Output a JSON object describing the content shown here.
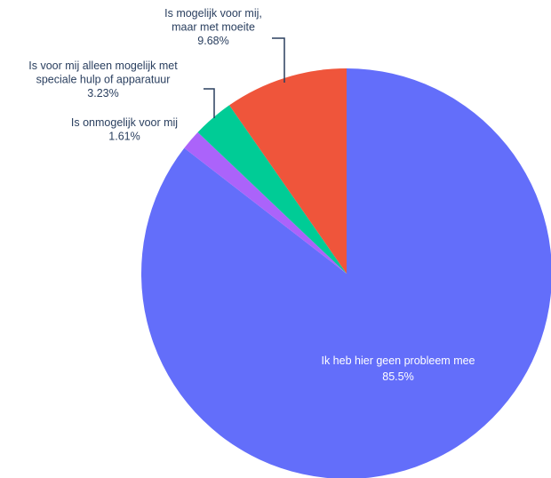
{
  "chart_data": {
    "type": "pie",
    "direction": "clockwise",
    "start": "top",
    "slices": [
      {
        "label": "Ik heb hier geen probleem mee",
        "lines": [
          "Ik heb hier geen probleem mee"
        ],
        "value": 85.5,
        "value_label": "85.5%",
        "color": "#636efa",
        "label_position": "inside"
      },
      {
        "label": "Is onmogelijk voor mij",
        "lines": [
          "Is onmogelijk voor mij"
        ],
        "value": 1.61,
        "value_label": "1.61%",
        "color": "#ab63fa",
        "label_position": "outside"
      },
      {
        "label": "Is voor mij alleen mogelijk met speciale hulp of apparatuur",
        "lines": [
          "Is voor mij alleen mogelijk met",
          "speciale hulp of apparatuur"
        ],
        "value": 3.23,
        "value_label": "3.23%",
        "color": "#00cc96",
        "label_position": "outside"
      },
      {
        "label": "Is mogelijk voor mij, maar met moeite",
        "lines": [
          "Is mogelijk voor mij,",
          "maar met moeite"
        ],
        "value": 9.68,
        "value_label": "9.68%",
        "color": "#ef553b",
        "label_position": "outside"
      }
    ]
  }
}
